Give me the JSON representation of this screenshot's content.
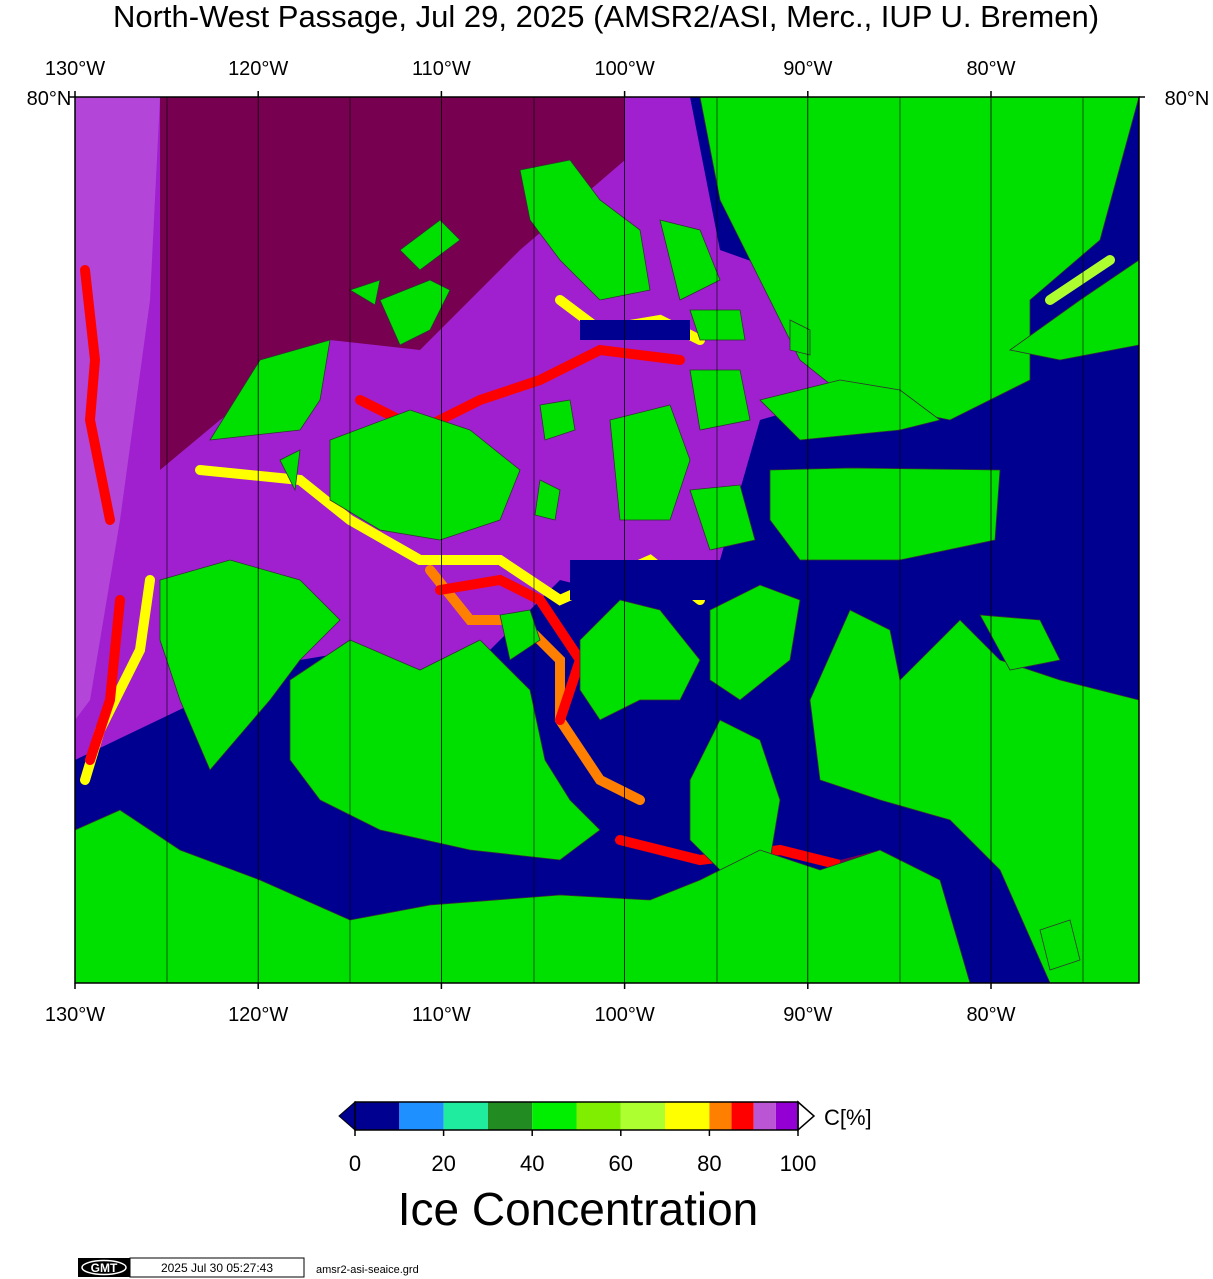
{
  "title": "North-West Passage, Jul 29, 2025 (AMSR2/ASI, Merc., IUP U. Bremen)",
  "map": {
    "lon_ticks": [
      {
        "value": -130,
        "label": "130°W"
      },
      {
        "value": -120,
        "label": "120°W"
      },
      {
        "value": -110,
        "label": "110°W"
      },
      {
        "value": -100,
        "label": "100°W"
      },
      {
        "value": -90,
        "label": "90°W"
      },
      {
        "value": -80,
        "label": "80°W"
      }
    ],
    "lat_ticks": [
      {
        "value": 80,
        "label": "80°N"
      }
    ]
  },
  "colorbar": {
    "bounds": [
      0,
      10,
      20,
      30,
      40,
      50,
      60,
      70,
      80,
      85,
      90,
      95,
      100
    ],
    "colors": [
      "#000090",
      "#1e90ff",
      "#20eca0",
      "#228b22",
      "#00ee00",
      "#7fee00",
      "#adff2f",
      "#ffff00",
      "#ff8000",
      "#ff0000",
      "#ba55d3",
      "#9400d3"
    ],
    "ticks": [
      0,
      20,
      40,
      60,
      80,
      100
    ],
    "unit_label": "C[%]",
    "title": "Ice Concentration"
  },
  "footer": {
    "logo": "GMT",
    "timestamp": "2025 Jul 30 05:27:43",
    "filename": "amsr2-asi-seaice.grd"
  }
}
